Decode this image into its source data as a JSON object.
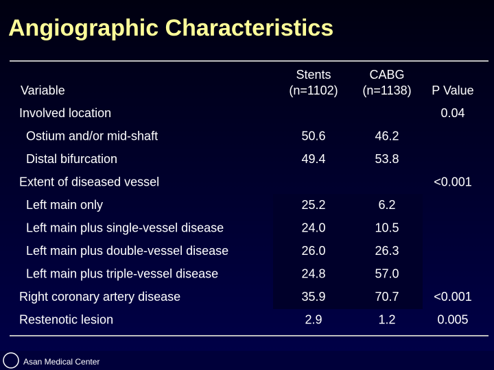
{
  "title": "Angiographic Characteristics",
  "footer": "Asan Medical Center",
  "table": {
    "header": {
      "variable": "Variable",
      "stents": [
        "Stents",
        "(n=1102)"
      ],
      "cabg": [
        "CABG",
        "(n=1138)"
      ],
      "p_value": "P Value"
    },
    "rows": [
      {
        "label": "Involved location",
        "p_value": "0.04"
      },
      {
        "label": "Ostium and/or mid-shaft",
        "stents": "50.6",
        "cabg": "46.2"
      },
      {
        "label": "Distal bifurcation",
        "stents": "49.4",
        "cabg": "53.8"
      },
      {
        "label": "Extent of diseased vessel",
        "p_value": "<0.001"
      },
      {
        "label": "Left main only",
        "stents": "25.2",
        "cabg": "6.2"
      },
      {
        "label": "Left main plus single-vessel disease",
        "stents": "24.0",
        "cabg": "10.5"
      },
      {
        "label": "Left main plus double-vessel disease",
        "stents": "26.0",
        "cabg": "26.3"
      },
      {
        "label": "Left main plus triple-vessel disease",
        "stents": "24.8",
        "cabg": "57.0"
      },
      {
        "label": "Right coronary artery disease",
        "stents": "35.9",
        "cabg": "70.7",
        "p_value": "<0.001"
      },
      {
        "label": "Restenotic lesion",
        "stents": "2.9",
        "cabg": "1.2",
        "p_value": "0.005"
      }
    ]
  }
}
